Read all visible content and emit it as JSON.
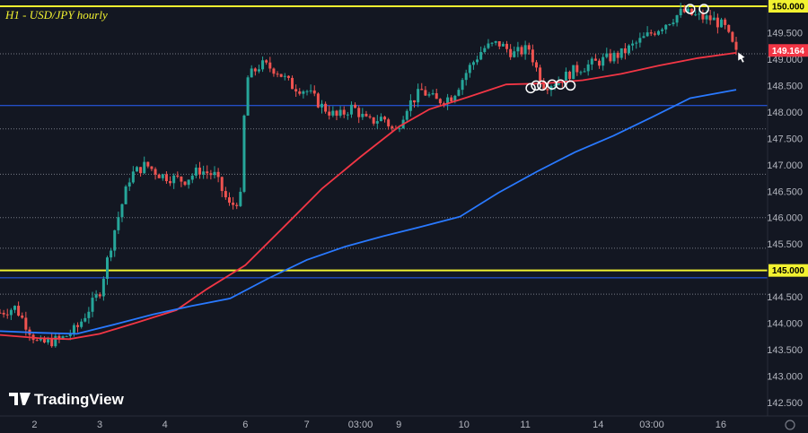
{
  "chart_data": {
    "type": "candlestick",
    "title": "H1 - USD/JPY hourly",
    "brand": "TradingView",
    "price_axis": {
      "min": 142.5,
      "max": 150.0,
      "ticks": [
        "150.000",
        "149.500",
        "149.000",
        "148.500",
        "148.000",
        "147.500",
        "147.000",
        "146.500",
        "146.000",
        "145.500",
        "145.000",
        "144.500",
        "144.000",
        "143.500",
        "143.000",
        "142.500"
      ]
    },
    "time_axis": {
      "ticks": [
        "2",
        "3",
        "4",
        "6",
        "7",
        "03:00",
        "9",
        "10",
        "11",
        "14",
        "03:00",
        "16"
      ]
    },
    "last_price": "149.164",
    "horizontal_levels": [
      {
        "value": 150.0,
        "color": "#f2f230",
        "label": "150.000",
        "style": "solid-thick"
      },
      {
        "value": 145.0,
        "color": "#f2f230",
        "label": "145.000",
        "style": "solid-thick"
      },
      {
        "value": 148.12,
        "color": "#2962ff",
        "style": "solid-thin"
      },
      {
        "value": 144.86,
        "color": "#2962ff",
        "style": "solid-thin"
      },
      {
        "value": 149.1,
        "color": "#b2b5be",
        "style": "dotted"
      },
      {
        "value": 147.68,
        "color": "#b2b5be",
        "style": "dotted"
      },
      {
        "value": 146.82,
        "color": "#b2b5be",
        "style": "dotted"
      },
      {
        "value": 146.0,
        "color": "#b2b5be",
        "style": "dotted"
      },
      {
        "value": 145.42,
        "color": "#b2b5be",
        "style": "dotted"
      },
      {
        "value": 144.55,
        "color": "#b2b5be",
        "style": "dotted"
      }
    ],
    "close_path": [
      [
        0,
        144.2
      ],
      [
        0.2,
        144.3
      ],
      [
        0.5,
        143.6
      ],
      [
        0.8,
        143.7
      ],
      [
        1.0,
        143.9
      ],
      [
        1.3,
        144.6
      ],
      [
        1.5,
        145.8
      ],
      [
        1.7,
        146.8
      ],
      [
        1.9,
        147.0
      ],
      [
        2.1,
        146.8
      ],
      [
        2.4,
        146.7
      ],
      [
        2.6,
        146.9
      ],
      [
        2.8,
        146.8
      ],
      [
        3.0,
        146.2
      ],
      [
        3.15,
        146.4
      ],
      [
        3.2,
        148.6
      ],
      [
        3.4,
        148.9
      ],
      [
        3.6,
        148.8
      ],
      [
        3.8,
        148.5
      ],
      [
        4.0,
        148.4
      ],
      [
        4.2,
        148.1
      ],
      [
        4.4,
        147.9
      ],
      [
        4.6,
        148.1
      ],
      [
        4.8,
        147.8
      ],
      [
        5.0,
        147.9
      ],
      [
        5.15,
        147.6
      ],
      [
        5.3,
        148.1
      ],
      [
        5.5,
        148.4
      ],
      [
        5.7,
        148.2
      ],
      [
        5.9,
        148.3
      ],
      [
        6.1,
        148.8
      ],
      [
        6.3,
        149.2
      ],
      [
        6.5,
        149.3
      ],
      [
        6.7,
        149.1
      ],
      [
        6.9,
        149.2
      ],
      [
        7.0,
        148.8
      ],
      [
        7.1,
        148.5
      ],
      [
        7.3,
        148.6
      ],
      [
        7.5,
        148.8
      ],
      [
        7.7,
        148.9
      ],
      [
        7.9,
        149.0
      ],
      [
        8.1,
        149.1
      ],
      [
        8.3,
        149.3
      ],
      [
        8.5,
        149.5
      ],
      [
        8.7,
        149.7
      ],
      [
        8.9,
        149.9
      ],
      [
        9.1,
        149.8
      ],
      [
        9.3,
        149.75
      ],
      [
        9.45,
        149.6
      ],
      [
        9.6,
        149.1
      ]
    ],
    "series": [
      {
        "name": "",
        "color": "#f23645",
        "points": [
          [
            0,
            143.78
          ],
          [
            0.5,
            143.72
          ],
          [
            0.9,
            143.7
          ],
          [
            1.3,
            143.8
          ],
          [
            1.8,
            144.02
          ],
          [
            2.3,
            144.25
          ],
          [
            2.7,
            144.65
          ],
          [
            3.2,
            145.1
          ],
          [
            3.7,
            145.82
          ],
          [
            4.2,
            146.55
          ],
          [
            4.7,
            147.15
          ],
          [
            5.2,
            147.72
          ],
          [
            5.6,
            148.05
          ],
          [
            6.1,
            148.28
          ],
          [
            6.6,
            148.52
          ],
          [
            7.1,
            148.54
          ],
          [
            7.6,
            148.6
          ],
          [
            8.1,
            148.72
          ],
          [
            8.6,
            148.88
          ],
          [
            9.1,
            149.02
          ],
          [
            9.6,
            149.12
          ]
        ]
      },
      {
        "name": "",
        "color": "#2979ff",
        "points": [
          [
            0,
            143.85
          ],
          [
            0.5,
            143.82
          ],
          [
            1.0,
            143.8
          ],
          [
            1.5,
            143.98
          ],
          [
            2.0,
            144.17
          ],
          [
            2.5,
            144.33
          ],
          [
            3.0,
            144.47
          ],
          [
            3.5,
            144.85
          ],
          [
            4.0,
            145.2
          ],
          [
            4.5,
            145.45
          ],
          [
            5.0,
            145.65
          ],
          [
            5.5,
            145.83
          ],
          [
            6.0,
            146.02
          ],
          [
            6.5,
            146.47
          ],
          [
            7.0,
            146.87
          ],
          [
            7.5,
            147.24
          ],
          [
            8.0,
            147.55
          ],
          [
            8.5,
            147.9
          ],
          [
            9.0,
            148.26
          ],
          [
            9.6,
            148.42
          ]
        ]
      }
    ],
    "annotations": [
      {
        "type": "circle",
        "x": 9.0,
        "y": 149.95
      },
      {
        "type": "circle",
        "x": 9.18,
        "y": 149.95
      },
      {
        "type": "circle",
        "x": 6.92,
        "y": 148.45
      },
      {
        "type": "circle",
        "x": 6.99,
        "y": 148.5
      },
      {
        "type": "circle",
        "x": 7.07,
        "y": 148.5
      },
      {
        "type": "circle",
        "x": 7.2,
        "y": 148.52
      },
      {
        "type": "circle",
        "x": 7.31,
        "y": 148.52
      },
      {
        "type": "circle",
        "x": 7.44,
        "y": 148.5
      }
    ],
    "up_color": "#26a69a",
    "down_color": "#ef5350"
  }
}
